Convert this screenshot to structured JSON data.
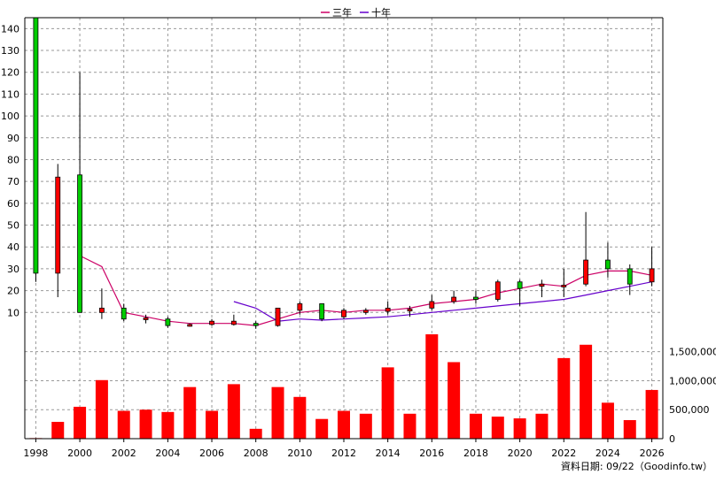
{
  "legend": [
    {
      "label": "三年",
      "color": "#cc0066"
    },
    {
      "label": "十年",
      "color": "#6600cc"
    }
  ],
  "source_note": "資料日期: 09/22（Goodinfo.tw）",
  "chart_data": [
    {
      "type": "candlestick",
      "title": "",
      "ylim": [
        0,
        145
      ],
      "y_ticks": [
        10,
        20,
        30,
        40,
        50,
        60,
        70,
        80,
        90,
        100,
        110,
        120,
        130,
        140
      ],
      "grid": true,
      "legend_position": "top-center",
      "up_color": "#ff0000",
      "down_color": "#00cc00",
      "candles": [
        {
          "year": 1998,
          "open": 145,
          "close": 28,
          "high": 145,
          "low": 24
        },
        {
          "year": 1999,
          "open": 28,
          "close": 72,
          "high": 78,
          "low": 17
        },
        {
          "year": 2000,
          "open": 73,
          "close": 10,
          "high": 120,
          "low": 10
        },
        {
          "year": 2001,
          "open": 10,
          "close": 12,
          "high": 21,
          "low": 7
        },
        {
          "year": 2002,
          "open": 12,
          "close": 7,
          "high": 14,
          "low": 6
        },
        {
          "year": 2003,
          "open": 7,
          "close": 7.5,
          "high": 9,
          "low": 5
        },
        {
          "year": 2004,
          "open": 7,
          "close": 4,
          "high": 8,
          "low": 3
        },
        {
          "year": 2005,
          "open": 4,
          "close": 4.5,
          "high": 5,
          "low": 3.5
        },
        {
          "year": 2006,
          "open": 4.5,
          "close": 6,
          "high": 7,
          "low": 4
        },
        {
          "year": 2007,
          "open": 4.5,
          "close": 6,
          "high": 9,
          "low": 4
        },
        {
          "year": 2008,
          "open": 5,
          "close": 4,
          "high": 6,
          "low": 2.5
        },
        {
          "year": 2009,
          "open": 4,
          "close": 12,
          "high": 12,
          "low": 3.5
        },
        {
          "year": 2010,
          "open": 11,
          "close": 14,
          "high": 15,
          "low": 9
        },
        {
          "year": 2011,
          "open": 14,
          "close": 7,
          "high": 14,
          "low": 6
        },
        {
          "year": 2012,
          "open": 8,
          "close": 11,
          "high": 12,
          "low": 7
        },
        {
          "year": 2013,
          "open": 10,
          "close": 11,
          "high": 12,
          "low": 9
        },
        {
          "year": 2014,
          "open": 10.5,
          "close": 12,
          "high": 15,
          "low": 9
        },
        {
          "year": 2015,
          "open": 11,
          "close": 11.5,
          "high": 13,
          "low": 8
        },
        {
          "year": 2016,
          "open": 12,
          "close": 15,
          "high": 18,
          "low": 11
        },
        {
          "year": 2017,
          "open": 15,
          "close": 17,
          "high": 20,
          "low": 14
        },
        {
          "year": 2018,
          "open": 17,
          "close": 16,
          "high": 20,
          "low": 14
        },
        {
          "year": 2019,
          "open": 16,
          "close": 24,
          "high": 25,
          "low": 15
        },
        {
          "year": 2020,
          "open": 24,
          "close": 21,
          "high": 25,
          "low": 13
        },
        {
          "year": 2021,
          "open": 22,
          "close": 23,
          "high": 25,
          "low": 17
        },
        {
          "year": 2022,
          "open": 22,
          "close": 22.5,
          "high": 30,
          "low": 17
        },
        {
          "year": 2023,
          "open": 23,
          "close": 34,
          "high": 56,
          "low": 22
        },
        {
          "year": 2024,
          "open": 34,
          "close": 30,
          "high": 42,
          "low": 26
        },
        {
          "year": 2025,
          "open": 30,
          "close": 23,
          "high": 32,
          "low": 18
        },
        {
          "year": 2026,
          "open": 24,
          "close": 30,
          "high": 40,
          "low": 22
        }
      ],
      "lines": [
        {
          "name": "三年",
          "color": "#cc0066",
          "x": [
            2000,
            2001,
            2002,
            2003,
            2004,
            2005,
            2006,
            2007,
            2008,
            2009,
            2010,
            2011,
            2012,
            2013,
            2014,
            2015,
            2016,
            2017,
            2018,
            2019,
            2020,
            2021,
            2022,
            2023,
            2024,
            2025,
            2026
          ],
          "y": [
            36,
            31,
            10,
            8,
            6,
            5,
            5,
            5,
            4,
            7,
            10,
            11,
            10,
            11,
            11,
            12,
            14,
            15,
            16,
            19,
            21,
            23,
            22,
            27,
            29,
            29,
            27
          ]
        },
        {
          "name": "十年",
          "color": "#6600cc",
          "x": [
            2007,
            2008,
            2009,
            2010,
            2011,
            2012,
            2013,
            2014,
            2015,
            2016,
            2017,
            2018,
            2019,
            2020,
            2021,
            2022,
            2023,
            2024,
            2025,
            2026
          ],
          "y": [
            15,
            12,
            6,
            7,
            6.5,
            7,
            7.5,
            8,
            9,
            10,
            11,
            12,
            13,
            14,
            15,
            16,
            18,
            20,
            22,
            24
          ]
        }
      ]
    },
    {
      "type": "bar",
      "title": "",
      "color": "#ff0000",
      "ylim": [
        0,
        1800000
      ],
      "y_ticks": [
        0,
        500000,
        1000000,
        1500000
      ],
      "y_tick_labels": [
        "0",
        "500,000",
        "1,000,000",
        "1,500,000"
      ],
      "x": [
        1998,
        1999,
        2000,
        2001,
        2002,
        2003,
        2004,
        2005,
        2006,
        2007,
        2008,
        2009,
        2010,
        2011,
        2012,
        2013,
        2014,
        2015,
        2016,
        2017,
        2018,
        2019,
        2020,
        2021,
        2022,
        2023,
        2024,
        2025,
        2026
      ],
      "values": [
        10000,
        290000,
        550000,
        1010000,
        480000,
        500000,
        460000,
        890000,
        480000,
        940000,
        170000,
        890000,
        720000,
        340000,
        480000,
        430000,
        1230000,
        430000,
        1800000,
        1320000,
        430000,
        380000,
        350000,
        430000,
        1390000,
        1620000,
        620000,
        320000,
        840000
      ]
    }
  ],
  "x_axis": {
    "tick_labels": [
      "1998",
      "2000",
      "2002",
      "2004",
      "2006",
      "2008",
      "2010",
      "2012",
      "2014",
      "2016",
      "2018",
      "2020",
      "2022",
      "2024",
      "2026"
    ]
  }
}
